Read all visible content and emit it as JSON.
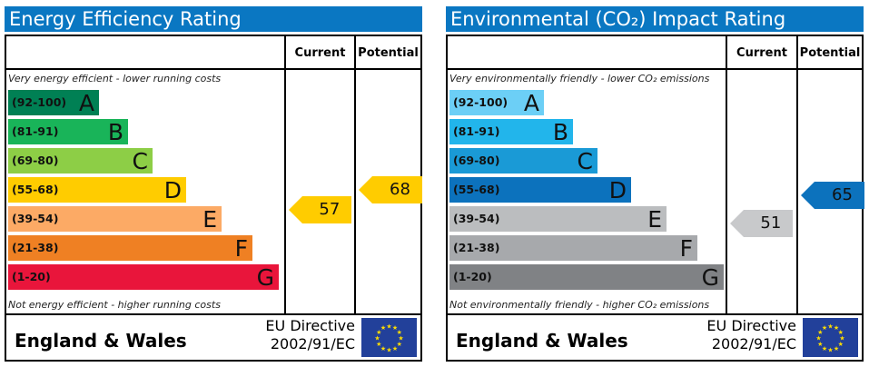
{
  "chart_data": [
    {
      "type": "table",
      "title": "Energy Efficiency Rating",
      "column_headers": [
        "Current",
        "Potential"
      ],
      "top_note": "Very energy efficient - lower running costs",
      "bottom_note": "Not energy efficient - higher running costs",
      "bands": [
        {
          "range": "(92-100)",
          "letter": "A",
          "color": "#008054"
        },
        {
          "range": "(81-91)",
          "letter": "B",
          "color": "#19b459"
        },
        {
          "range": "(69-80)",
          "letter": "C",
          "color": "#8dce46"
        },
        {
          "range": "(55-68)",
          "letter": "D",
          "color": "#ffcc00"
        },
        {
          "range": "(39-54)",
          "letter": "E",
          "color": "#fcaa65"
        },
        {
          "range": "(21-38)",
          "letter": "F",
          "color": "#ef8023"
        },
        {
          "range": "(1-20)",
          "letter": "G",
          "color": "#e9153b"
        }
      ],
      "current": {
        "value": 57,
        "color": "#ffcc00"
      },
      "potential": {
        "value": 68,
        "color": "#ffcc00"
      },
      "footer": {
        "region": "England & Wales",
        "directive_line1": "EU Directive",
        "directive_line2": "2002/91/EC"
      }
    },
    {
      "type": "table",
      "title": "Environmental (CO₂) Impact Rating",
      "column_headers": [
        "Current",
        "Potential"
      ],
      "top_note": "Very environmentally friendly - lower CO₂ emissions",
      "bottom_note": "Not environmentally friendly - higher CO₂ emissions",
      "bands": [
        {
          "range": "(92-100)",
          "letter": "A",
          "color": "#6ccff6"
        },
        {
          "range": "(81-91)",
          "letter": "B",
          "color": "#22b5eb"
        },
        {
          "range": "(69-80)",
          "letter": "C",
          "color": "#1a9ad6"
        },
        {
          "range": "(55-68)",
          "letter": "D",
          "color": "#0c72bd"
        },
        {
          "range": "(39-54)",
          "letter": "E",
          "color": "#bbbdbf"
        },
        {
          "range": "(21-38)",
          "letter": "F",
          "color": "#a7a9ac"
        },
        {
          "range": "(1-20)",
          "letter": "G",
          "color": "#808285"
        }
      ],
      "current": {
        "value": 51,
        "color": "#c8c9cb"
      },
      "potential": {
        "value": 65,
        "color": "#0c72bd"
      },
      "footer": {
        "region": "England & Wales",
        "directive_line1": "EU Directive",
        "directive_line2": "2002/91/EC"
      }
    }
  ]
}
